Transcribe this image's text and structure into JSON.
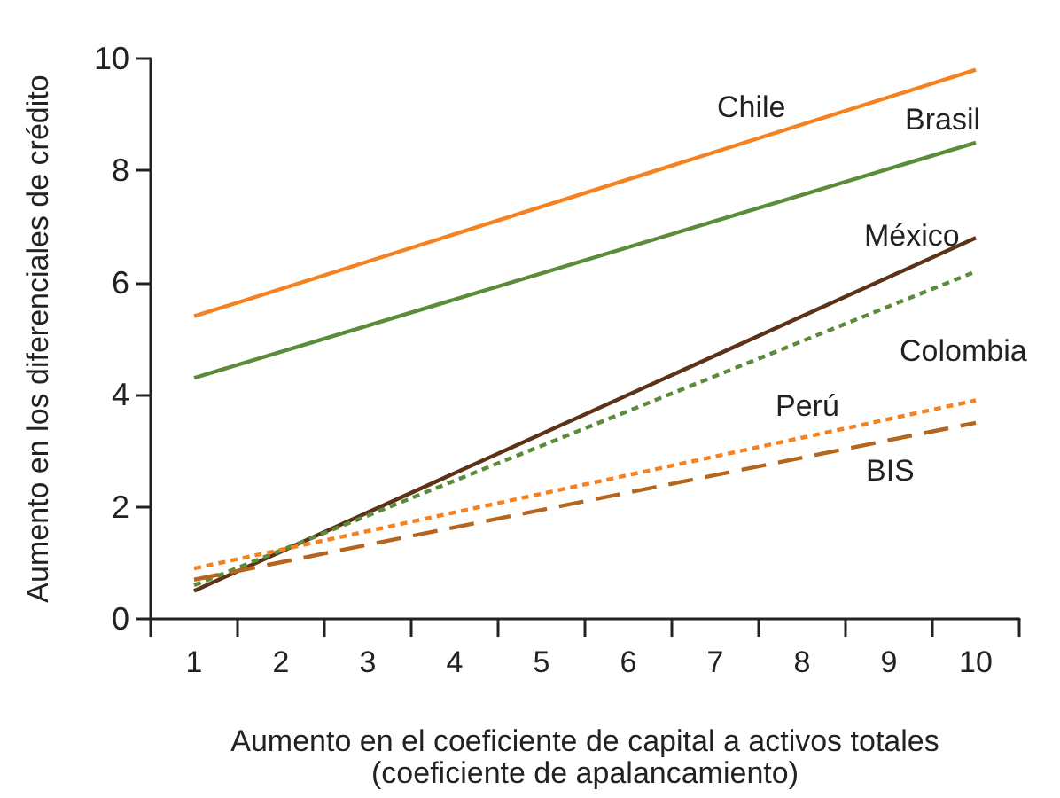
{
  "chart_data": {
    "type": "line",
    "xlabel": "Aumento en el coeficiente de capital a activos totales\n(coeficiente de apalancamiento)",
    "ylabel": "Aumento en los diferenciales de crédito",
    "categories": [
      "1",
      "2",
      "3",
      "4",
      "5",
      "6",
      "7",
      "8",
      "9",
      "10"
    ],
    "ylim": [
      0,
      10
    ],
    "yticks": [
      0,
      2,
      4,
      6,
      8,
      10
    ],
    "grid": false,
    "legend": false,
    "marker": "none",
    "series": [
      {
        "name": "Chile",
        "color": "#f58220",
        "line_style": "solid",
        "x": [
          "1",
          "10"
        ],
        "values": [
          5.4,
          9.8
        ]
      },
      {
        "name": "Brasil",
        "color": "#5b8c3a",
        "line_style": "solid",
        "x": [
          "1",
          "10"
        ],
        "values": [
          4.3,
          8.5
        ]
      },
      {
        "name": "México",
        "color": "#5c3317",
        "line_style": "solid",
        "x": [
          "1",
          "10"
        ],
        "values": [
          0.5,
          6.8
        ]
      },
      {
        "name": "Colombia",
        "color": "#5b8c3a",
        "line_style": "dotted",
        "x": [
          "1",
          "10"
        ],
        "values": [
          0.6,
          6.2
        ]
      },
      {
        "name": "Perú",
        "color": "#f58220",
        "line_style": "dotted",
        "x": [
          "1",
          "10"
        ],
        "values": [
          0.9,
          3.9
        ]
      },
      {
        "name": "BIS",
        "color": "#b5651d",
        "line_style": "dashed",
        "x": [
          "1",
          "10"
        ],
        "values": [
          0.7,
          3.5
        ]
      }
    ]
  }
}
